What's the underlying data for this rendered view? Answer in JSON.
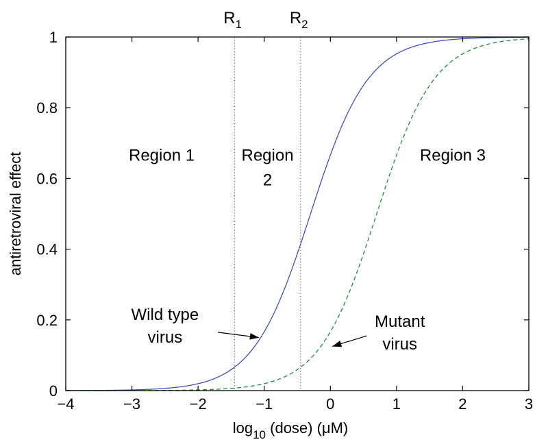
{
  "chart_data": {
    "type": "line",
    "xlabel": "log10 (dose) (μM)",
    "xlabel_parts": {
      "pre": "log",
      "sub": "10",
      "post": " (dose) (μM)"
    },
    "ylabel": "antiretroviral effect",
    "xlim": [
      -4,
      3
    ],
    "ylim": [
      0,
      1
    ],
    "xticks": [
      -4,
      -3,
      -2,
      -1,
      0,
      1,
      2,
      3
    ],
    "xtick_labels": [
      "−4",
      "−3",
      "−2",
      "−1",
      "0",
      "1",
      "2",
      "3"
    ],
    "yticks": [
      0,
      0.2,
      0.4,
      0.6,
      0.8,
      1
    ],
    "ytick_labels": [
      "0",
      "0.2",
      "0.4",
      "0.6",
      "0.8",
      "1"
    ],
    "grid": false,
    "series": [
      {
        "name": "Wild type virus",
        "style": "solid",
        "color": "#3a4fc4",
        "ic50_log10": -0.3,
        "hill_slope": 1.0
      },
      {
        "name": "Mutant virus",
        "style": "dashed",
        "color": "#1e8c3a",
        "ic50_log10": 0.7,
        "hill_slope": 1.0
      }
    ],
    "vertical_lines": [
      {
        "label_main": "R",
        "label_sub": "1",
        "x": -1.45
      },
      {
        "label_main": "R",
        "label_sub": "2",
        "x": -0.45
      }
    ],
    "region_labels": [
      {
        "lines": [
          "Region 1"
        ],
        "x": -2.55,
        "y": 0.65
      },
      {
        "lines": [
          "Region",
          "2"
        ],
        "x": -0.95,
        "y": 0.65
      },
      {
        "lines": [
          "Region 3"
        ],
        "x": 1.85,
        "y": 0.65
      }
    ],
    "annotations": [
      {
        "lines": [
          "Wild type",
          "virus"
        ],
        "text_x": -2.5,
        "text_y": 0.2,
        "arrow_from": [
          -1.7,
          0.165
        ],
        "arrow_to": [
          -1.08,
          0.15
        ]
      },
      {
        "lines": [
          "Mutant",
          "virus"
        ],
        "text_x": 1.05,
        "text_y": 0.18,
        "arrow_from": [
          0.55,
          0.155
        ],
        "arrow_to": [
          0.03,
          0.125
        ]
      }
    ]
  }
}
